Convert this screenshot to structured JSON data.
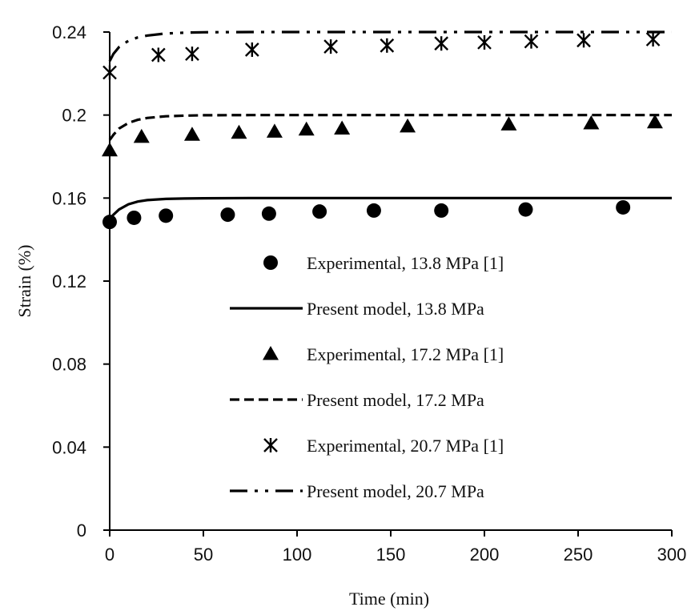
{
  "chart_data": {
    "type": "scatter",
    "xlabel": "Time (min)",
    "ylabel": "Strain (%)",
    "xlim": [
      0,
      300
    ],
    "ylim": [
      0,
      0.24
    ],
    "xticks": [
      "0",
      "50",
      "100",
      "150",
      "200",
      "250",
      "300"
    ],
    "yticks": [
      "0",
      "0.04",
      "0.08",
      "0.12",
      "0.16",
      "0.2",
      "0.24"
    ],
    "grid": false,
    "legend_position": "center",
    "series": [
      {
        "name": "Experimental, 13.8 MPa [1]",
        "kind": "marker",
        "marker": "circle",
        "x": [
          0,
          13,
          30,
          63,
          85,
          112,
          141,
          177,
          222,
          274
        ],
        "y": [
          0.1485,
          0.1505,
          0.1515,
          0.152,
          0.1525,
          0.1535,
          0.154,
          0.154,
          0.1545,
          0.1555
        ]
      },
      {
        "name": "Present model, 13.8 MPa",
        "kind": "line",
        "dash": "solid",
        "x": [
          0,
          2,
          5,
          10,
          15,
          20,
          30,
          40,
          50,
          75,
          100,
          150,
          200,
          250,
          300
        ],
        "y": [
          0.15,
          0.152,
          0.1545,
          0.157,
          0.1583,
          0.159,
          0.1596,
          0.1598,
          0.1599,
          0.16,
          0.16,
          0.16,
          0.16,
          0.16,
          0.16
        ]
      },
      {
        "name": "Experimental, 17.2 MPa [1]",
        "kind": "marker",
        "marker": "triangle",
        "x": [
          0,
          17,
          44,
          69,
          88,
          105,
          124,
          159,
          213,
          257,
          291
        ],
        "y": [
          0.183,
          0.1895,
          0.1905,
          0.1915,
          0.192,
          0.193,
          0.1935,
          0.1945,
          0.1955,
          0.196,
          0.1965
        ]
      },
      {
        "name": "Present model, 17.2 MPa",
        "kind": "line",
        "dash": "dashed",
        "x": [
          0,
          2,
          5,
          10,
          15,
          20,
          30,
          40,
          50,
          75,
          100,
          150,
          200,
          250,
          300
        ],
        "y": [
          0.188,
          0.1905,
          0.1935,
          0.1962,
          0.1977,
          0.1986,
          0.1994,
          0.1997,
          0.1999,
          0.2,
          0.2,
          0.2,
          0.2,
          0.2,
          0.2
        ]
      },
      {
        "name": "Experimental, 20.7 MPa [1]",
        "kind": "marker",
        "marker": "asterisk",
        "x": [
          0,
          26,
          44,
          76,
          118,
          148,
          177,
          200,
          225,
          253,
          290
        ],
        "y": [
          0.2205,
          0.229,
          0.2295,
          0.2315,
          0.233,
          0.2335,
          0.2345,
          0.235,
          0.2355,
          0.236,
          0.2365
        ]
      },
      {
        "name": "Present model, 20.7 MPa",
        "kind": "line",
        "dash": "dash-dot-dot",
        "x": [
          0,
          2,
          5,
          10,
          15,
          20,
          30,
          40,
          50,
          75,
          100,
          150,
          200,
          250,
          300
        ],
        "y": [
          0.226,
          0.2295,
          0.2328,
          0.2358,
          0.2374,
          0.2383,
          0.2393,
          0.2397,
          0.2399,
          0.24,
          0.24,
          0.24,
          0.24,
          0.24,
          0.24
        ]
      }
    ]
  }
}
